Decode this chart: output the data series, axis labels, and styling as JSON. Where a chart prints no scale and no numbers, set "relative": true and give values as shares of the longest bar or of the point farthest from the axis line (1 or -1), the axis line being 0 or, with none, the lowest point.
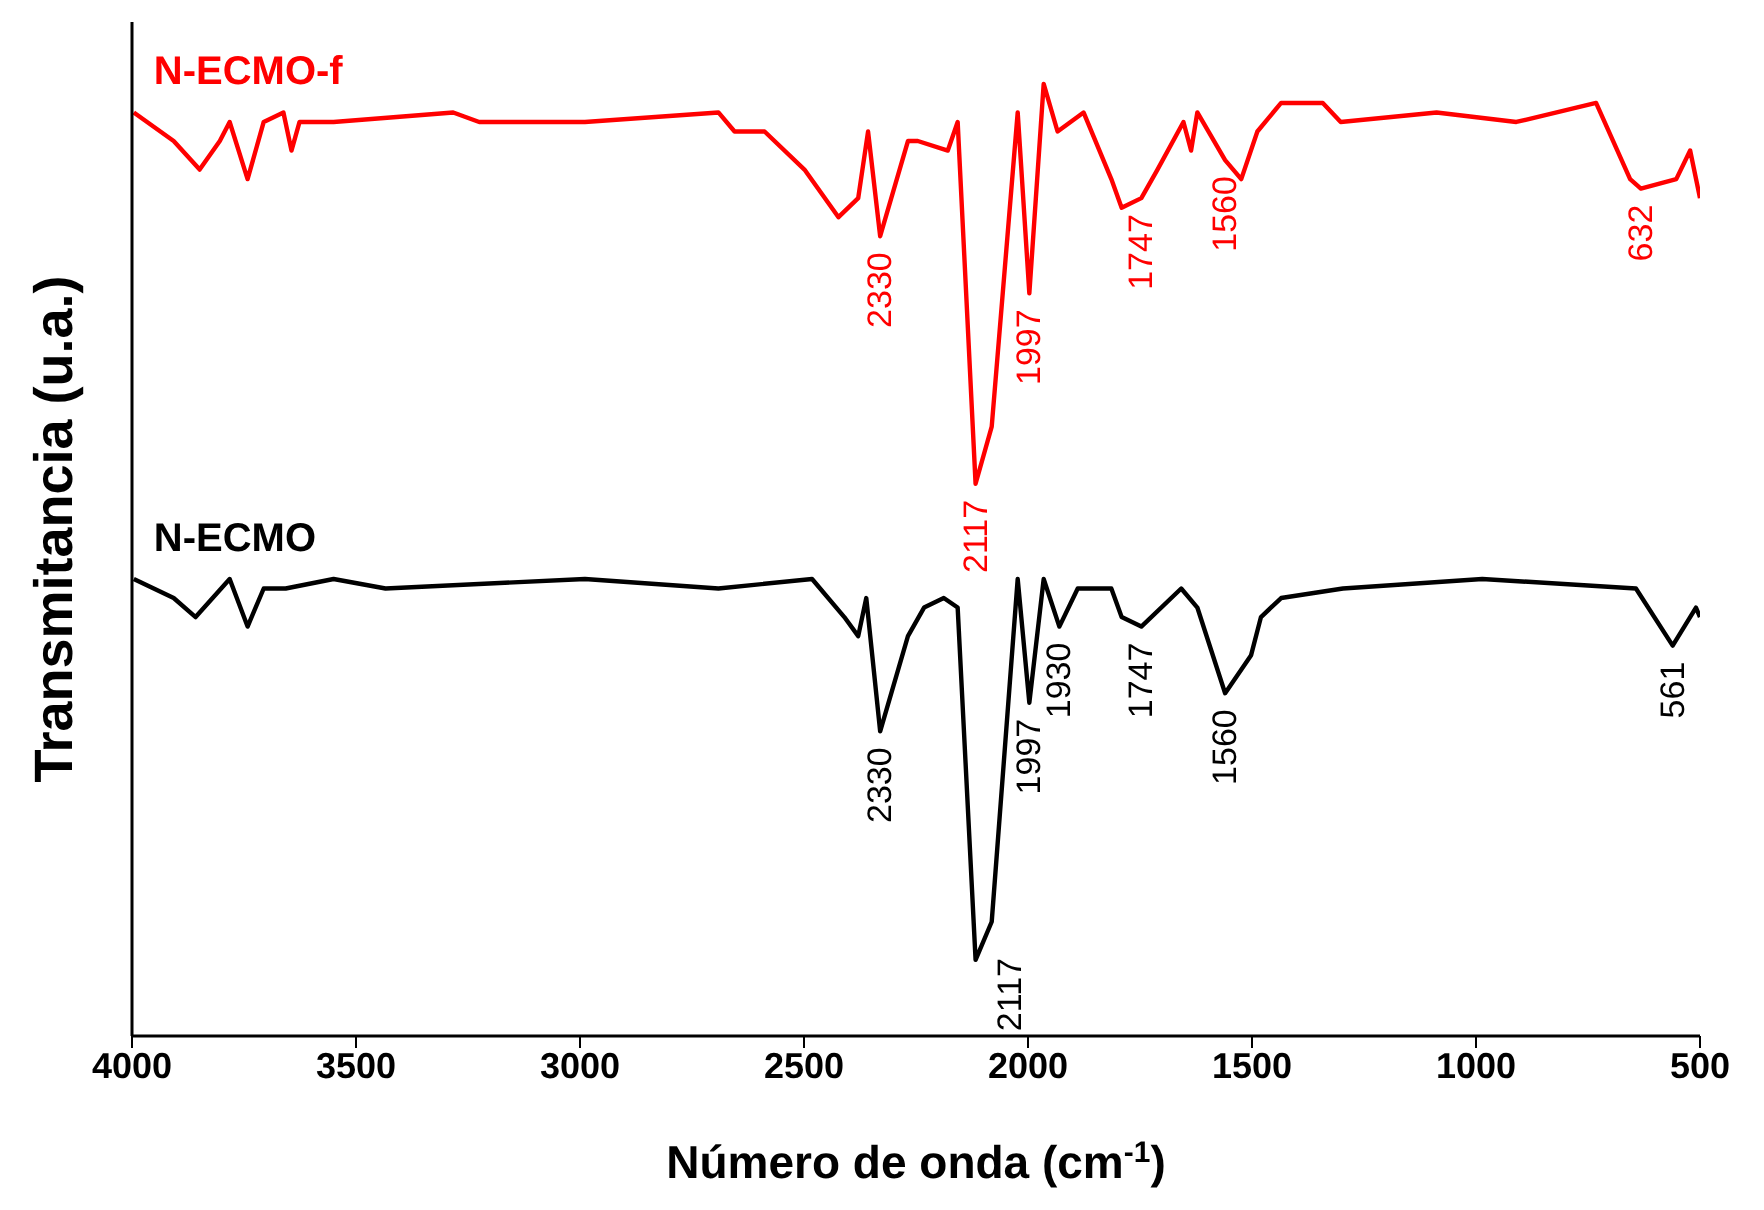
{
  "chart_data": {
    "type": "line",
    "xlabel": "Número de onda (cm$^{-1}$)",
    "ylabel": "Transmitancia (u.a.)",
    "relative": true,
    "tick_labels": "x",
    "marker": "none",
    "line_style": "solid",
    "xlim": [
      4000,
      500
    ],
    "xticks": [
      4000,
      3500,
      3000,
      2500,
      2000,
      1500,
      1000,
      500
    ],
    "series": [
      {
        "name": "N-ECMO-f",
        "color": "#ff0000",
        "x": [
          3996,
          3907,
          3849,
          3804,
          3782,
          3742,
          3706,
          3662,
          3644,
          3626,
          3550,
          3283,
          3225,
          2989,
          2691,
          2655,
          2588,
          2499,
          2423,
          2379,
          2357,
          2330,
          2268,
          2246,
          2179,
          2157,
          2117,
          2081,
          2023,
          1997,
          1965,
          1934,
          1876,
          1814,
          1791,
          1747,
          1711,
          1653,
          1636,
          1622,
          1560,
          1524,
          1488,
          1435,
          1342,
          1302,
          1088,
          910,
          732,
          656,
          632,
          553,
          522,
          500
        ],
        "values": [
          0.97,
          0.94,
          0.91,
          0.94,
          0.96,
          0.9,
          0.96,
          0.97,
          0.93,
          0.96,
          0.96,
          0.97,
          0.96,
          0.96,
          0.97,
          0.95,
          0.95,
          0.91,
          0.86,
          0.88,
          0.95,
          0.84,
          0.94,
          0.94,
          0.93,
          0.96,
          0.58,
          0.64,
          0.97,
          0.78,
          1,
          0.95,
          0.97,
          0.9,
          0.87,
          0.88,
          0.91,
          0.96,
          0.93,
          0.97,
          0.92,
          0.9,
          0.95,
          0.98,
          0.98,
          0.96,
          0.97,
          0.96,
          0.98,
          0.9,
          0.89,
          0.9,
          0.93,
          0.88
        ]
      },
      {
        "name": "N-ECMO",
        "color": "#000000",
        "x": [
          3996,
          3907,
          3858,
          3782,
          3742,
          3706,
          3657,
          3550,
          3434,
          2989,
          2691,
          2482,
          2410,
          2379,
          2361,
          2330,
          2268,
          2232,
          2188,
          2157,
          2117,
          2081,
          2023,
          1997,
          1965,
          1930,
          1889,
          1814,
          1791,
          1747,
          1658,
          1622,
          1560,
          1502,
          1480,
          1435,
          1297,
          986,
          643,
          561,
          509,
          500
        ],
        "values": [
          0.48,
          0.46,
          0.44,
          0.48,
          0.43,
          0.47,
          0.47,
          0.48,
          0.47,
          0.48,
          0.47,
          0.48,
          0.44,
          0.42,
          0.46,
          0.32,
          0.42,
          0.45,
          0.46,
          0.45,
          0.08,
          0.12,
          0.48,
          0.35,
          0.48,
          0.43,
          0.47,
          0.47,
          0.44,
          0.43,
          0.47,
          0.45,
          0.36,
          0.4,
          0.44,
          0.46,
          0.47,
          0.48,
          0.47,
          0.41,
          0.45,
          0.44
        ]
      }
    ],
    "annotations": [
      {
        "text": "2330",
        "x": 2330,
        "y": 0.84
      },
      {
        "text": "1997",
        "x": 1997,
        "y": 0.78
      },
      {
        "text": "2117",
        "x": 2117,
        "y": 0.58
      },
      {
        "text": "1747",
        "x": 1747,
        "y": 0.88
      },
      {
        "text": "1560",
        "x": 1560,
        "y": 0.92
      },
      {
        "text": "632",
        "x": 632,
        "y": 0.89
      },
      {
        "text": "2330",
        "x": 2330,
        "y": 0.32
      },
      {
        "text": "1997",
        "x": 1997,
        "y": 0.35
      },
      {
        "text": "1930",
        "x": 1930,
        "y": 0.43
      },
      {
        "text": "1747",
        "x": 1747,
        "y": 0.43
      },
      {
        "text": "1560",
        "x": 1560,
        "y": 0.36
      },
      {
        "text": "2117",
        "x": 2117,
        "y": 0.08
      },
      {
        "text": "561",
        "x": 561,
        "y": 0.41
      }
    ]
  }
}
